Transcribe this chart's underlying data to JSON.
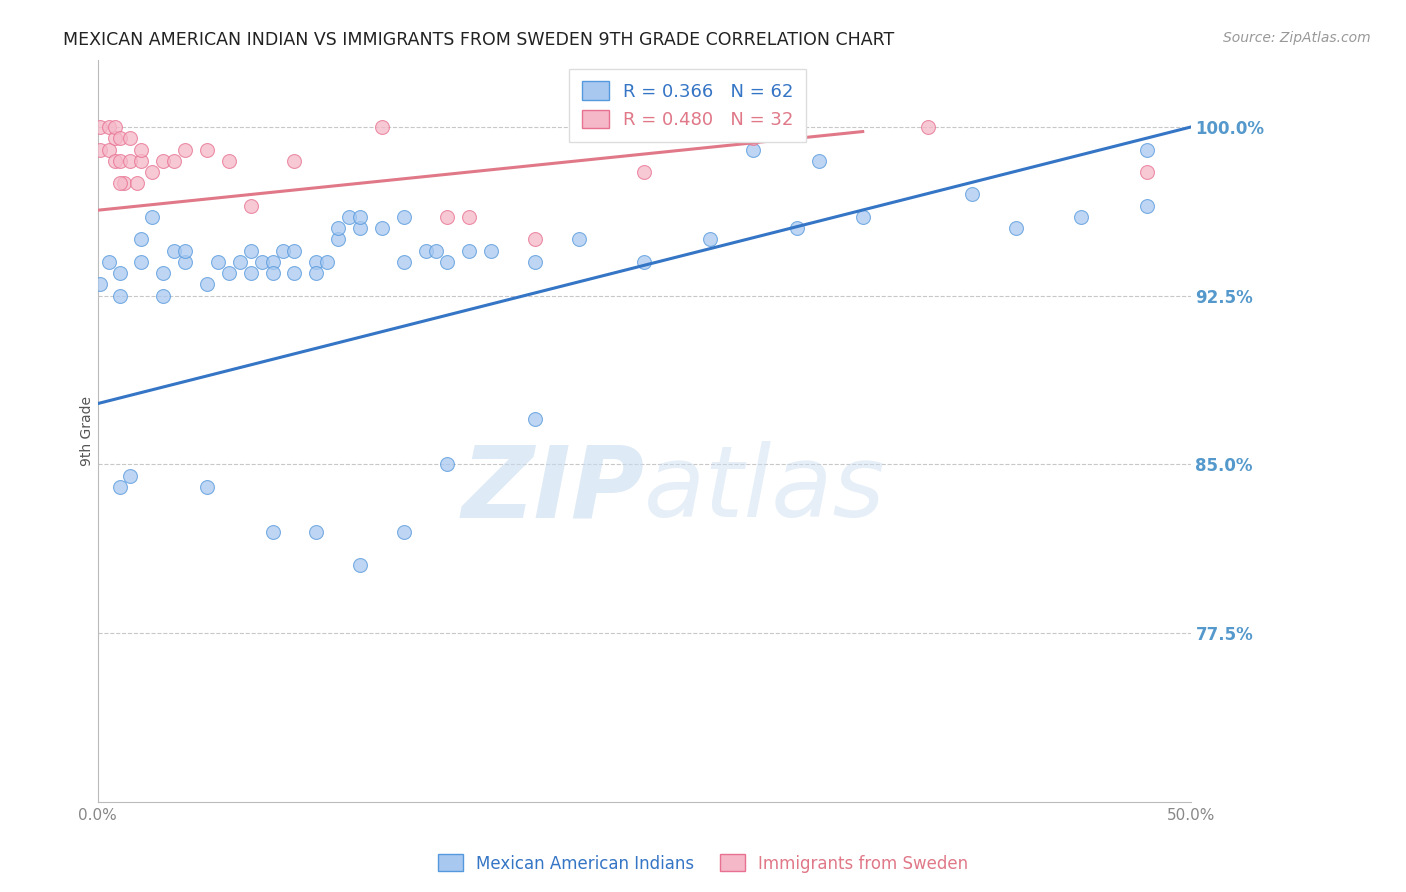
{
  "title": "MEXICAN AMERICAN INDIAN VS IMMIGRANTS FROM SWEDEN 9TH GRADE CORRELATION CHART",
  "source": "Source: ZipAtlas.com",
  "ylabel": "9th Grade",
  "xlim": [
    0.0,
    0.5
  ],
  "ylim": [
    0.7,
    1.03
  ],
  "xtick_labels": [
    "0.0%",
    "",
    "",
    "",
    "",
    "50.0%"
  ],
  "xtick_vals": [
    0.0,
    0.1,
    0.2,
    0.3,
    0.4,
    0.5
  ],
  "ytick_labels": [
    "77.5%",
    "85.0%",
    "92.5%",
    "100.0%"
  ],
  "ytick_vals": [
    0.775,
    0.85,
    0.925,
    1.0
  ],
  "blue_R": 0.366,
  "blue_N": 62,
  "pink_R": 0.48,
  "pink_N": 32,
  "blue_color": "#A8C8F0",
  "pink_color": "#F5B8C8",
  "blue_edge_color": "#5599DD",
  "pink_edge_color": "#E87090",
  "blue_line_color": "#3575C5",
  "pink_line_color": "#E07888",
  "grid_color": "#C8C8C8",
  "background_color": "#FFFFFF",
  "watermark": "ZIPatlas",
  "blue_scatter_x": [
    0.001,
    0.005,
    0.01,
    0.01,
    0.02,
    0.02,
    0.025,
    0.03,
    0.03,
    0.035,
    0.04,
    0.04,
    0.05,
    0.055,
    0.06,
    0.065,
    0.07,
    0.07,
    0.075,
    0.08,
    0.08,
    0.085,
    0.09,
    0.09,
    0.1,
    0.1,
    0.105,
    0.11,
    0.11,
    0.115,
    0.12,
    0.12,
    0.13,
    0.14,
    0.14,
    0.15,
    0.155,
    0.16,
    0.17,
    0.18,
    0.2,
    0.22,
    0.25,
    0.28,
    0.3,
    0.33,
    0.4,
    0.42,
    0.48,
    0.01,
    0.015,
    0.05,
    0.08,
    0.1,
    0.12,
    0.14,
    0.16,
    0.2,
    0.35,
    0.45,
    0.32,
    0.48
  ],
  "blue_scatter_y": [
    0.93,
    0.94,
    0.925,
    0.935,
    0.94,
    0.95,
    0.96,
    0.925,
    0.935,
    0.945,
    0.94,
    0.945,
    0.93,
    0.94,
    0.935,
    0.94,
    0.935,
    0.945,
    0.94,
    0.94,
    0.935,
    0.945,
    0.945,
    0.935,
    0.94,
    0.935,
    0.94,
    0.95,
    0.955,
    0.96,
    0.955,
    0.96,
    0.955,
    0.96,
    0.94,
    0.945,
    0.945,
    0.94,
    0.945,
    0.945,
    0.94,
    0.95,
    0.94,
    0.95,
    0.99,
    0.985,
    0.97,
    0.955,
    0.99,
    0.84,
    0.845,
    0.84,
    0.82,
    0.82,
    0.805,
    0.82,
    0.85,
    0.87,
    0.96,
    0.96,
    0.955,
    0.965
  ],
  "pink_scatter_x": [
    0.001,
    0.001,
    0.005,
    0.005,
    0.008,
    0.008,
    0.008,
    0.01,
    0.01,
    0.012,
    0.015,
    0.015,
    0.018,
    0.02,
    0.02,
    0.025,
    0.03,
    0.035,
    0.04,
    0.05,
    0.06,
    0.07,
    0.09,
    0.13,
    0.17,
    0.2,
    0.25,
    0.3,
    0.38,
    0.48,
    0.01,
    0.16
  ],
  "pink_scatter_y": [
    0.99,
    1.0,
    0.99,
    1.0,
    0.985,
    0.995,
    1.0,
    0.985,
    0.995,
    0.975,
    0.985,
    0.995,
    0.975,
    0.985,
    0.99,
    0.98,
    0.985,
    0.985,
    0.99,
    0.99,
    0.985,
    0.965,
    0.985,
    1.0,
    0.96,
    0.95,
    0.98,
    0.995,
    1.0,
    0.98,
    0.975,
    0.96
  ],
  "blue_line_x": [
    0.0,
    0.5
  ],
  "blue_line_y": [
    0.877,
    1.0
  ],
  "pink_line_x": [
    0.0,
    0.35
  ],
  "pink_line_y": [
    0.963,
    0.998
  ],
  "blue_dot_size": 100,
  "pink_dot_size": 100
}
